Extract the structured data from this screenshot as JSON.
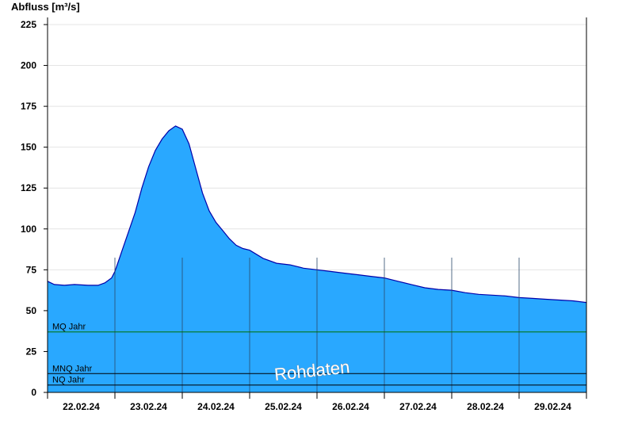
{
  "chart_data": {
    "type": "area",
    "ylabel": "Abfluss [m³/s]",
    "ylim": [
      0,
      230
    ],
    "yticks": [
      0,
      25,
      50,
      75,
      100,
      125,
      150,
      175,
      200,
      225
    ],
    "day_labels": [
      "22.02.24",
      "23.02.24",
      "24.02.24",
      "25.02.24",
      "26.02.24",
      "27.02.24",
      "28.02.24",
      "29.02.24"
    ],
    "x_day_range": [
      0,
      8
    ],
    "grid": "horizontal",
    "fill_color": "#29a8ff",
    "line_color": "#0000aa",
    "series": [
      {
        "x": [
          0.0,
          0.1,
          0.25,
          0.4,
          0.6,
          0.75,
          0.85,
          0.95,
          1.0,
          1.05,
          1.1,
          1.2,
          1.3,
          1.4,
          1.5,
          1.6,
          1.7,
          1.8,
          1.9,
          2.0,
          2.1,
          2.2,
          2.3,
          2.4,
          2.5,
          2.6,
          2.7,
          2.8,
          2.9,
          3.0,
          3.2,
          3.4,
          3.6,
          3.8,
          4.0,
          4.2,
          4.4,
          4.6,
          4.8,
          5.0,
          5.2,
          5.4,
          5.6,
          5.8,
          6.0,
          6.2,
          6.4,
          6.6,
          6.8,
          7.0,
          7.2,
          7.4,
          7.6,
          7.8,
          8.0
        ],
        "values": [
          68,
          66,
          65.5,
          66,
          65.5,
          65.5,
          67,
          70,
          74,
          80,
          86,
          98,
          110,
          125,
          138,
          148,
          155,
          160,
          163,
          161,
          152,
          137,
          122,
          111,
          104,
          99,
          94,
          90,
          88,
          87,
          82,
          79,
          78,
          76,
          75,
          74,
          73,
          72,
          71,
          70,
          68,
          66,
          64,
          63,
          62.5,
          61,
          60,
          59.5,
          59,
          58,
          57.5,
          57,
          56.5,
          56,
          55
        ]
      }
    ],
    "reference_lines": [
      {
        "label": "MQ Jahr",
        "value": 37,
        "color": "#007000"
      },
      {
        "label": "MNQ Jahr",
        "value": 11.5,
        "color": "#000000"
      },
      {
        "label": "NQ Jahr",
        "value": 4.5,
        "color": "#000000"
      }
    ],
    "watermark": "Rohdaten"
  }
}
